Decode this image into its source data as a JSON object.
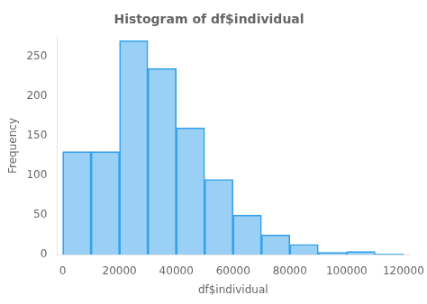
{
  "chart_data": {
    "type": "histogram",
    "title": "Histogram of df$individual",
    "xlabel": "df$individual",
    "ylabel": "Frequency",
    "bins": [
      0,
      10000,
      20000,
      30000,
      40000,
      50000,
      60000,
      70000,
      80000,
      90000,
      100000,
      110000,
      120000
    ],
    "values": [
      130,
      130,
      270,
      235,
      160,
      95,
      50,
      25,
      13,
      3,
      4,
      1
    ],
    "xlim": [
      -2000,
      122000
    ],
    "xticks": [
      0,
      20000,
      40000,
      60000,
      80000,
      100000,
      120000
    ],
    "ylim": [
      0,
      275
    ],
    "yticks": [
      0,
      50,
      100,
      150,
      200,
      250
    ],
    "grid": false
  }
}
